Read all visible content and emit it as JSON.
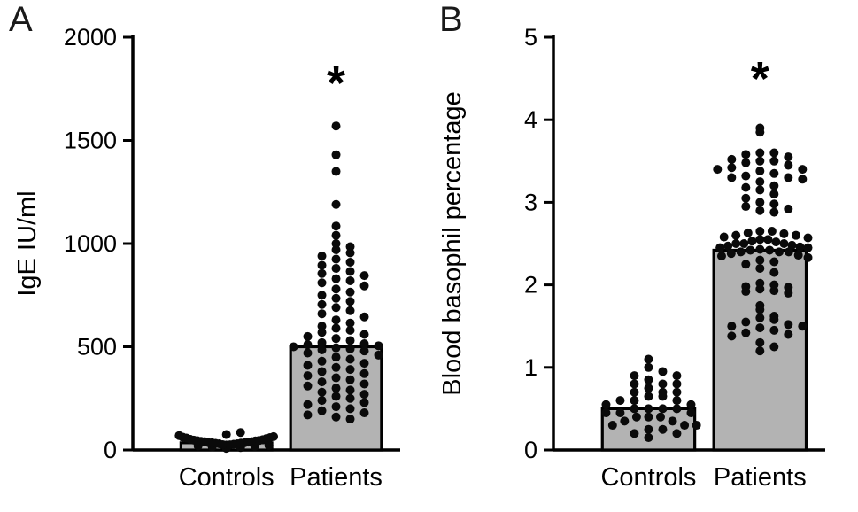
{
  "figure": {
    "background": "#ffffff",
    "text_color": "#000000"
  },
  "chart_data": [
    {
      "type": "scatter",
      "panel_label": "A",
      "ylabel": "IgE IU/ml",
      "ylim": [
        0,
        2000
      ],
      "yticks": [
        0,
        500,
        1000,
        1500,
        2000
      ],
      "categories": [
        "Controls",
        "Patients"
      ],
      "bar_values": [
        35,
        500
      ],
      "bar_fill": "#b3b3b3",
      "series": [
        {
          "name": "Controls",
          "values": [
            8,
            12,
            15,
            18,
            20,
            22,
            24,
            25,
            26,
            28,
            30,
            30,
            32,
            33,
            35,
            35,
            36,
            38,
            40,
            40,
            42,
            44,
            45,
            46,
            48,
            50,
            52,
            55,
            58,
            60,
            62,
            65,
            70,
            75,
            85
          ]
        },
        {
          "name": "Patients",
          "values": [
            1570,
            1430,
            1350,
            1190,
            1085,
            1040,
            1000,
            985,
            970,
            955,
            940,
            925,
            910,
            895,
            880,
            865,
            855,
            845,
            830,
            820,
            810,
            795,
            780,
            765,
            750,
            735,
            720,
            705,
            690,
            675,
            660,
            645,
            630,
            615,
            600,
            590,
            580,
            570,
            560,
            550,
            540,
            530,
            520,
            515,
            510,
            505,
            500,
            495,
            490,
            485,
            480,
            470,
            460,
            450,
            440,
            430,
            420,
            410,
            400,
            390,
            380,
            370,
            360,
            350,
            340,
            330,
            320,
            310,
            300,
            290,
            280,
            270,
            260,
            250,
            240,
            230,
            220,
            210,
            200,
            190,
            180,
            170,
            160,
            150
          ]
        }
      ],
      "annotations": [
        {
          "text": "*",
          "category": "Patients",
          "y": 1700
        }
      ]
    },
    {
      "type": "scatter",
      "panel_label": "B",
      "ylabel": "Blood basophil percentage",
      "ylim": [
        0,
        5
      ],
      "yticks": [
        0,
        1,
        2,
        3,
        4,
        5
      ],
      "categories": [
        "Controls",
        "Patients"
      ],
      "bar_values": [
        0.5,
        2.42
      ],
      "bar_fill": "#b3b3b3",
      "series": [
        {
          "name": "Controls",
          "values": [
            1.1,
            1.0,
            0.95,
            0.9,
            0.9,
            0.85,
            0.8,
            0.8,
            0.8,
            0.75,
            0.7,
            0.7,
            0.7,
            0.65,
            0.65,
            0.6,
            0.6,
            0.6,
            0.55,
            0.55,
            0.5,
            0.5,
            0.5,
            0.5,
            0.45,
            0.45,
            0.45,
            0.4,
            0.4,
            0.4,
            0.35,
            0.35,
            0.3,
            0.3,
            0.3,
            0.25,
            0.25,
            0.2,
            0.2,
            0.15
          ]
        },
        {
          "name": "Patients",
          "values": [
            3.9,
            3.85,
            3.6,
            3.6,
            3.58,
            3.55,
            3.52,
            3.5,
            3.5,
            3.48,
            3.45,
            3.42,
            3.4,
            3.4,
            3.38,
            3.35,
            3.32,
            3.3,
            3.3,
            3.28,
            3.25,
            3.2,
            3.18,
            3.15,
            3.1,
            3.05,
            3.0,
            2.98,
            2.95,
            2.92,
            2.9,
            2.88,
            2.65,
            2.65,
            2.63,
            2.62,
            2.6,
            2.6,
            2.58,
            2.57,
            2.55,
            2.55,
            2.53,
            2.52,
            2.5,
            2.5,
            2.5,
            2.48,
            2.47,
            2.46,
            2.45,
            2.45,
            2.43,
            2.42,
            2.42,
            2.4,
            2.4,
            2.4,
            2.38,
            2.36,
            2.35,
            2.33,
            2.3,
            2.28,
            2.25,
            2.2,
            2.15,
            2.02,
            2.0,
            1.98,
            1.97,
            1.95,
            1.93,
            1.92,
            1.9,
            1.75,
            1.7,
            1.62,
            1.6,
            1.58,
            1.55,
            1.52,
            1.5,
            1.5,
            1.48,
            1.45,
            1.42,
            1.4,
            1.38,
            1.3,
            1.25,
            1.2
          ]
        }
      ],
      "annotations": [
        {
          "text": "*",
          "category": "Patients",
          "y": 4.3
        }
      ]
    }
  ]
}
